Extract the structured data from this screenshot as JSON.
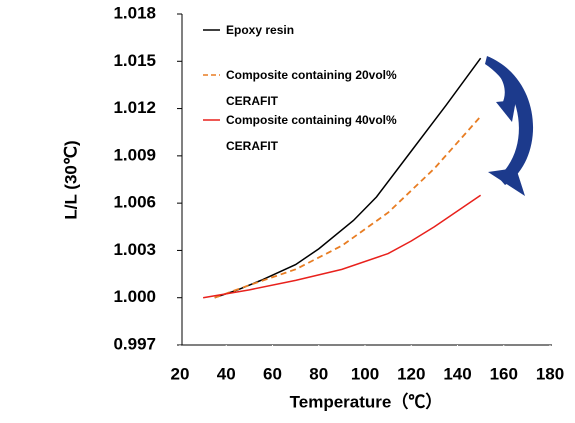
{
  "chart_data": {
    "type": "line",
    "xlabel": "Temperature（℃）",
    "ylabel": "L/L (30℃)",
    "xlim": [
      20,
      180
    ],
    "xticks": [
      20,
      40,
      60,
      80,
      100,
      120,
      140,
      160,
      180
    ],
    "ylim": [
      0.997,
      1.018
    ],
    "yticks": [
      0.997,
      {
        "value": 1,
        "label": "1.000"
      },
      1.003,
      1.006,
      1.009,
      1.012,
      1.015,
      1.018
    ],
    "series": [
      {
        "name": "Epoxy resin",
        "color": "#000000",
        "line_style": "solid",
        "x": [
          35,
          45,
          55,
          70,
          80,
          95,
          105,
          120,
          135,
          150
        ],
        "values": [
          1.0,
          1.0005,
          1.0011,
          1.0021,
          1.0031,
          1.0049,
          1.0064,
          1.0093,
          1.0122,
          1.0152
        ]
      },
      {
        "name": "Composite containing 20vol% CERAFIT",
        "color": "#e87d23",
        "line_style": "dashed",
        "x": [
          35,
          50,
          70,
          90,
          110,
          130,
          150
        ],
        "values": [
          1.0,
          1.0008,
          1.0018,
          1.0033,
          1.0054,
          1.0082,
          1.0115
        ]
      },
      {
        "name": "Composite containing 40vol% CERAFIT",
        "color": "#e8211c",
        "line_style": "solid",
        "x": [
          30,
          50,
          70,
          90,
          110,
          120,
          130,
          140,
          150
        ],
        "values": [
          1.0,
          1.0005,
          1.0011,
          1.0018,
          1.0028,
          1.0036,
          1.0045,
          1.0055,
          1.0065
        ]
      }
    ]
  }
}
